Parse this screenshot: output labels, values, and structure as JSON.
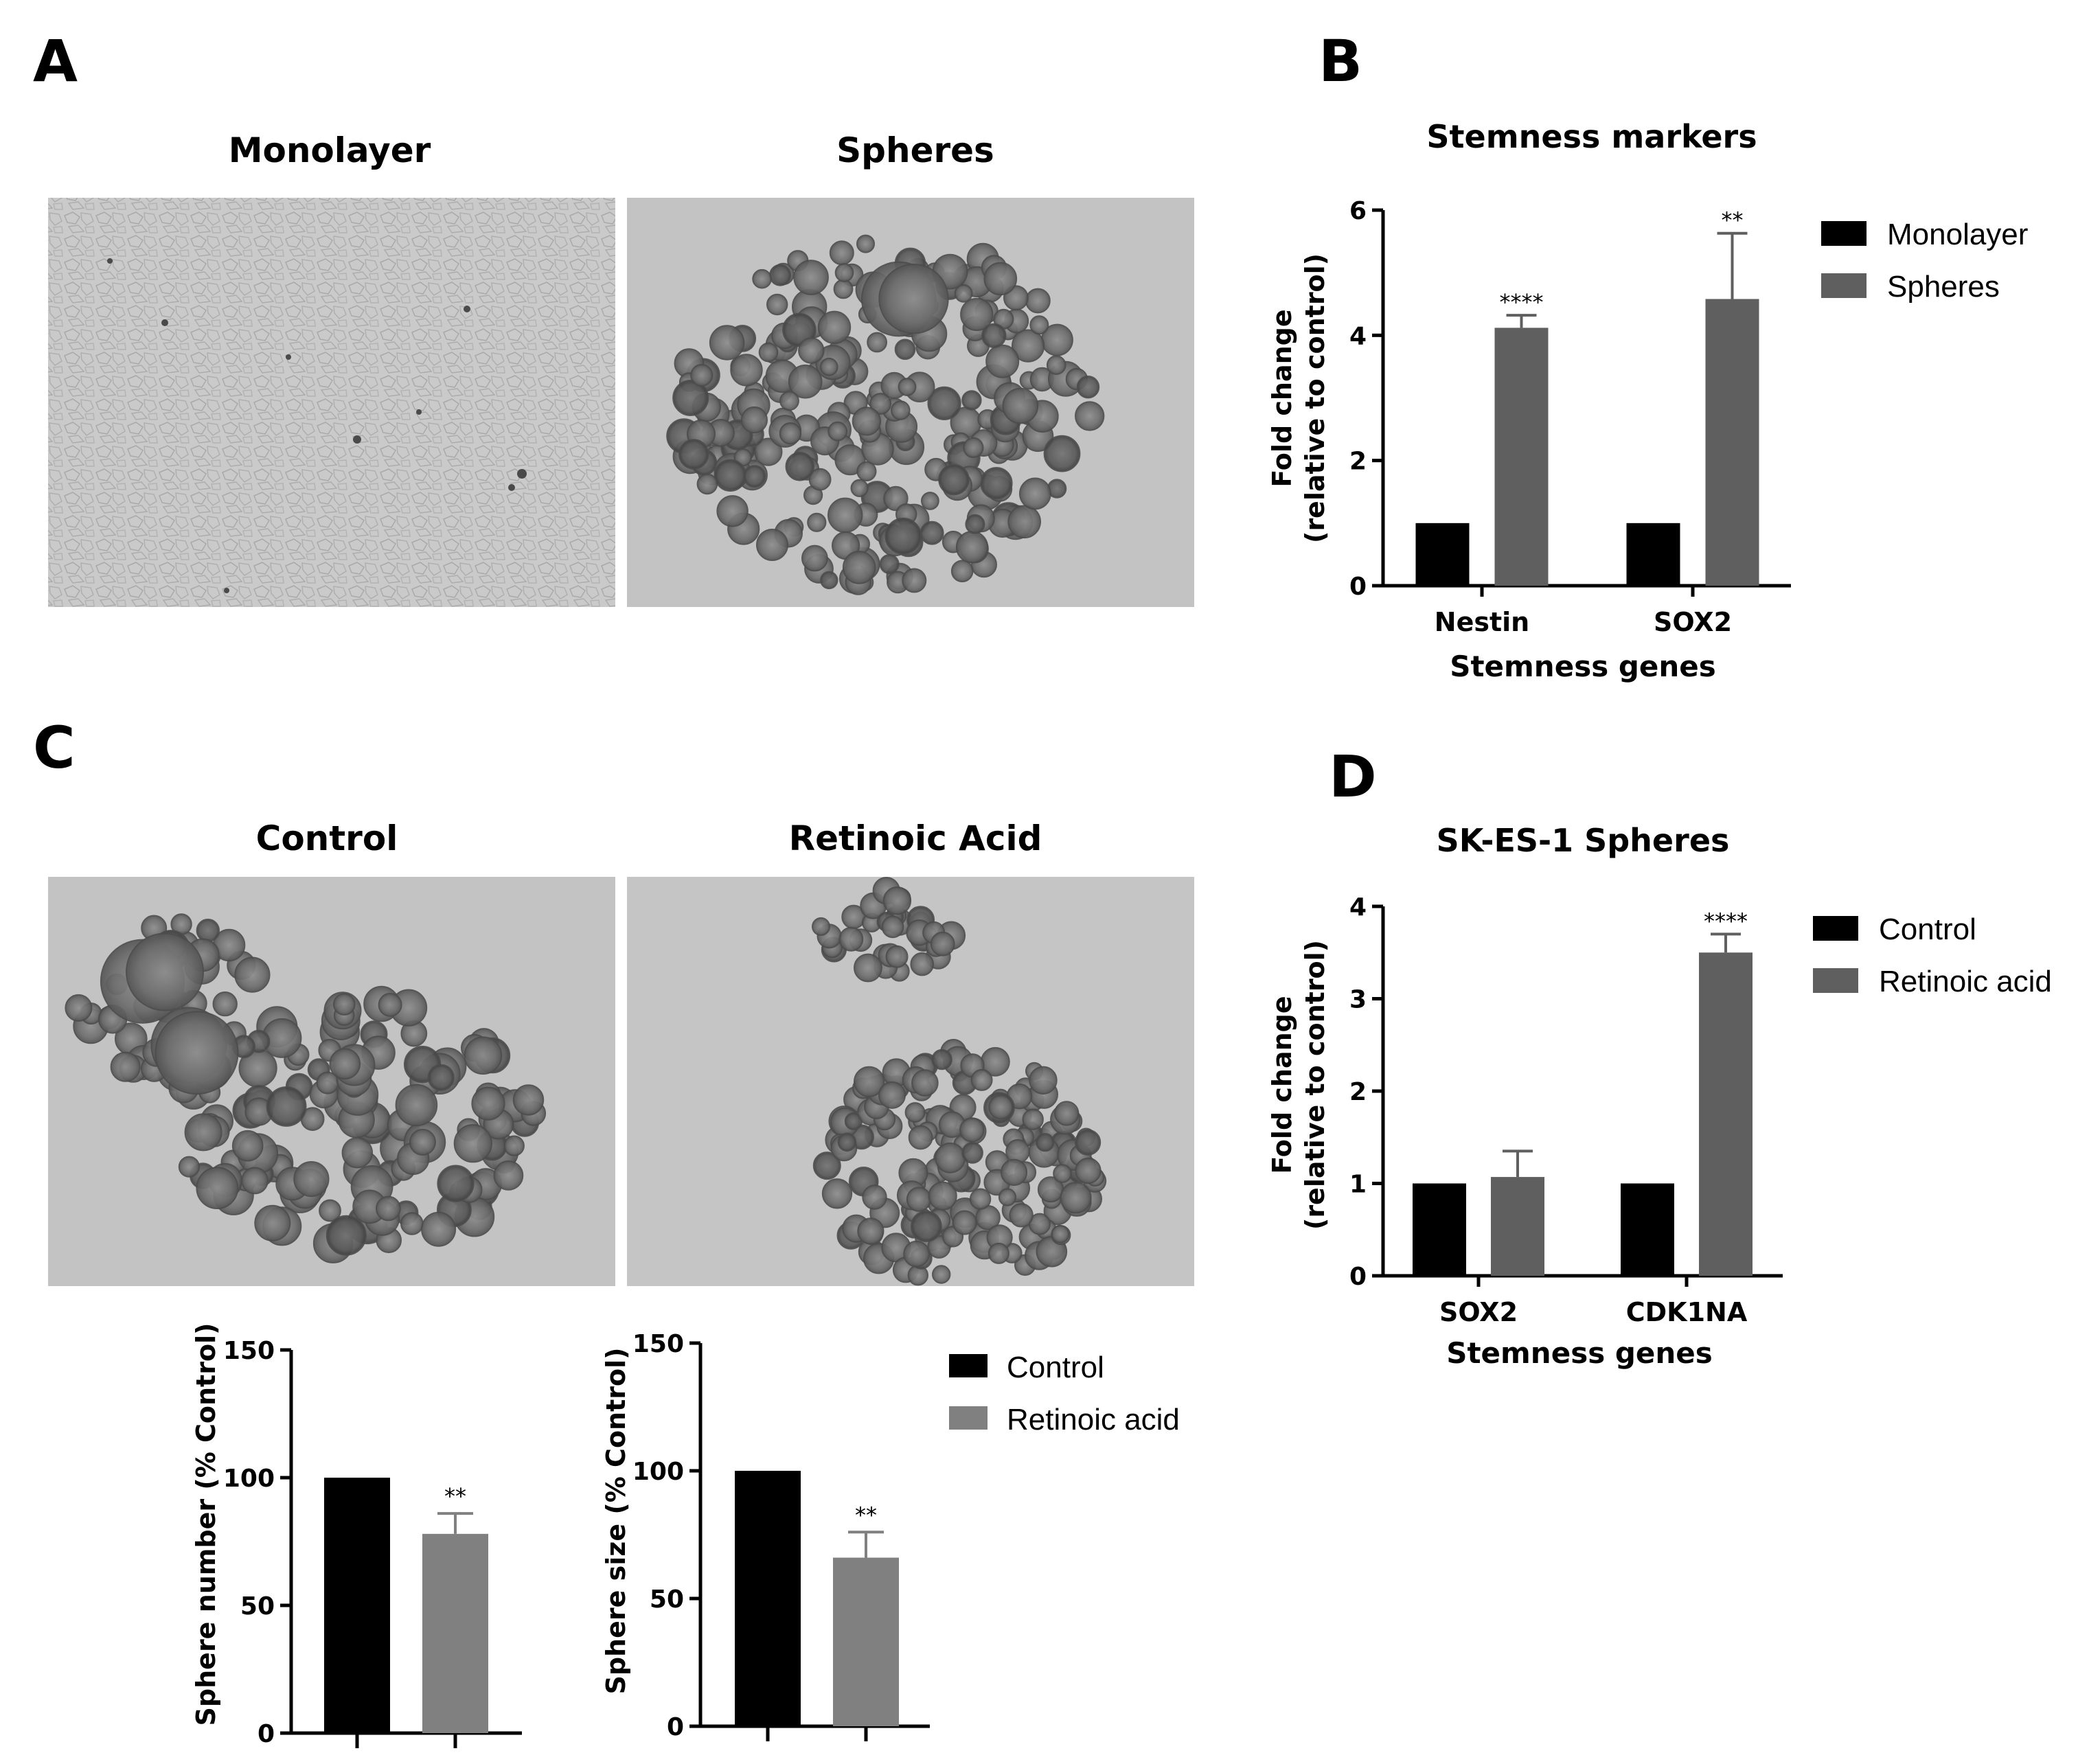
{
  "panels": {
    "A": {
      "letter": "A",
      "image_titles": [
        "Monolayer",
        "Spheres"
      ]
    },
    "C": {
      "letter": "C",
      "image_titles": [
        "Control",
        "Retinoic Acid"
      ]
    },
    "B": {
      "letter": "B"
    },
    "D": {
      "letter": "D"
    }
  },
  "colors": {
    "black_bar": "#000000",
    "dark_gray_bar": "#5f5f5f",
    "mid_gray_bar": "#808080",
    "micrograph_bg": "#c3c3c3"
  },
  "chart_data": [
    {
      "id": "B",
      "type": "bar",
      "title": "Stemness markers",
      "xlabel": "Stemness genes",
      "ylabel": [
        "Fold change",
        "(relative to control)"
      ],
      "categories": [
        "Nestin",
        "SOX2"
      ],
      "ylim": [
        0,
        6
      ],
      "yticks": [
        0,
        2,
        4,
        6
      ],
      "legend_position": "right",
      "series": [
        {
          "name": "Monolayer",
          "values": [
            1.0,
            1.0
          ],
          "errors": [
            0,
            0
          ],
          "color": "#000000"
        },
        {
          "name": "Spheres",
          "values": [
            4.12,
            4.58
          ],
          "errors": [
            0.2,
            1.05
          ],
          "color": "#5f5f5f"
        }
      ],
      "significance": [
        "****",
        "**"
      ]
    },
    {
      "id": "D",
      "type": "bar",
      "title": "SK-ES-1 Spheres",
      "xlabel": "Stemness genes",
      "ylabel": [
        "Fold change",
        "(relative to control)"
      ],
      "categories": [
        "SOX2",
        "CDK1NA"
      ],
      "ylim": [
        0,
        4
      ],
      "yticks": [
        0,
        1,
        2,
        3,
        4
      ],
      "legend_position": "right",
      "series": [
        {
          "name": "Control",
          "values": [
            1.0,
            1.0
          ],
          "errors": [
            0,
            0
          ],
          "color": "#000000"
        },
        {
          "name": "Retinoic acid",
          "values": [
            1.07,
            3.5
          ],
          "errors": [
            0.28,
            0.2
          ],
          "color": "#5f5f5f"
        }
      ],
      "significance": [
        "",
        "****"
      ]
    },
    {
      "id": "C1",
      "type": "bar",
      "ylabel": "Sphere number (% Control)",
      "categories": [
        "Control",
        "Retinoic acid"
      ],
      "values": [
        100,
        78
      ],
      "errors": [
        0,
        8
      ],
      "colors": [
        "#000000",
        "#808080"
      ],
      "ylim": [
        0,
        150
      ],
      "yticks": [
        0,
        50,
        100,
        150
      ],
      "significance": [
        "",
        "**"
      ]
    },
    {
      "id": "C2",
      "type": "bar",
      "ylabel": "Sphere size (% Control)",
      "categories": [
        "Control",
        "Retinoic acid"
      ],
      "values": [
        100,
        66
      ],
      "errors": [
        0,
        10
      ],
      "colors": [
        "#000000",
        "#808080"
      ],
      "ylim": [
        0,
        150
      ],
      "yticks": [
        0,
        50,
        100,
        150
      ],
      "significance": [
        "",
        "**"
      ],
      "legend": [
        "Control",
        "Retinoic acid"
      ],
      "legend_position": "right"
    }
  ]
}
